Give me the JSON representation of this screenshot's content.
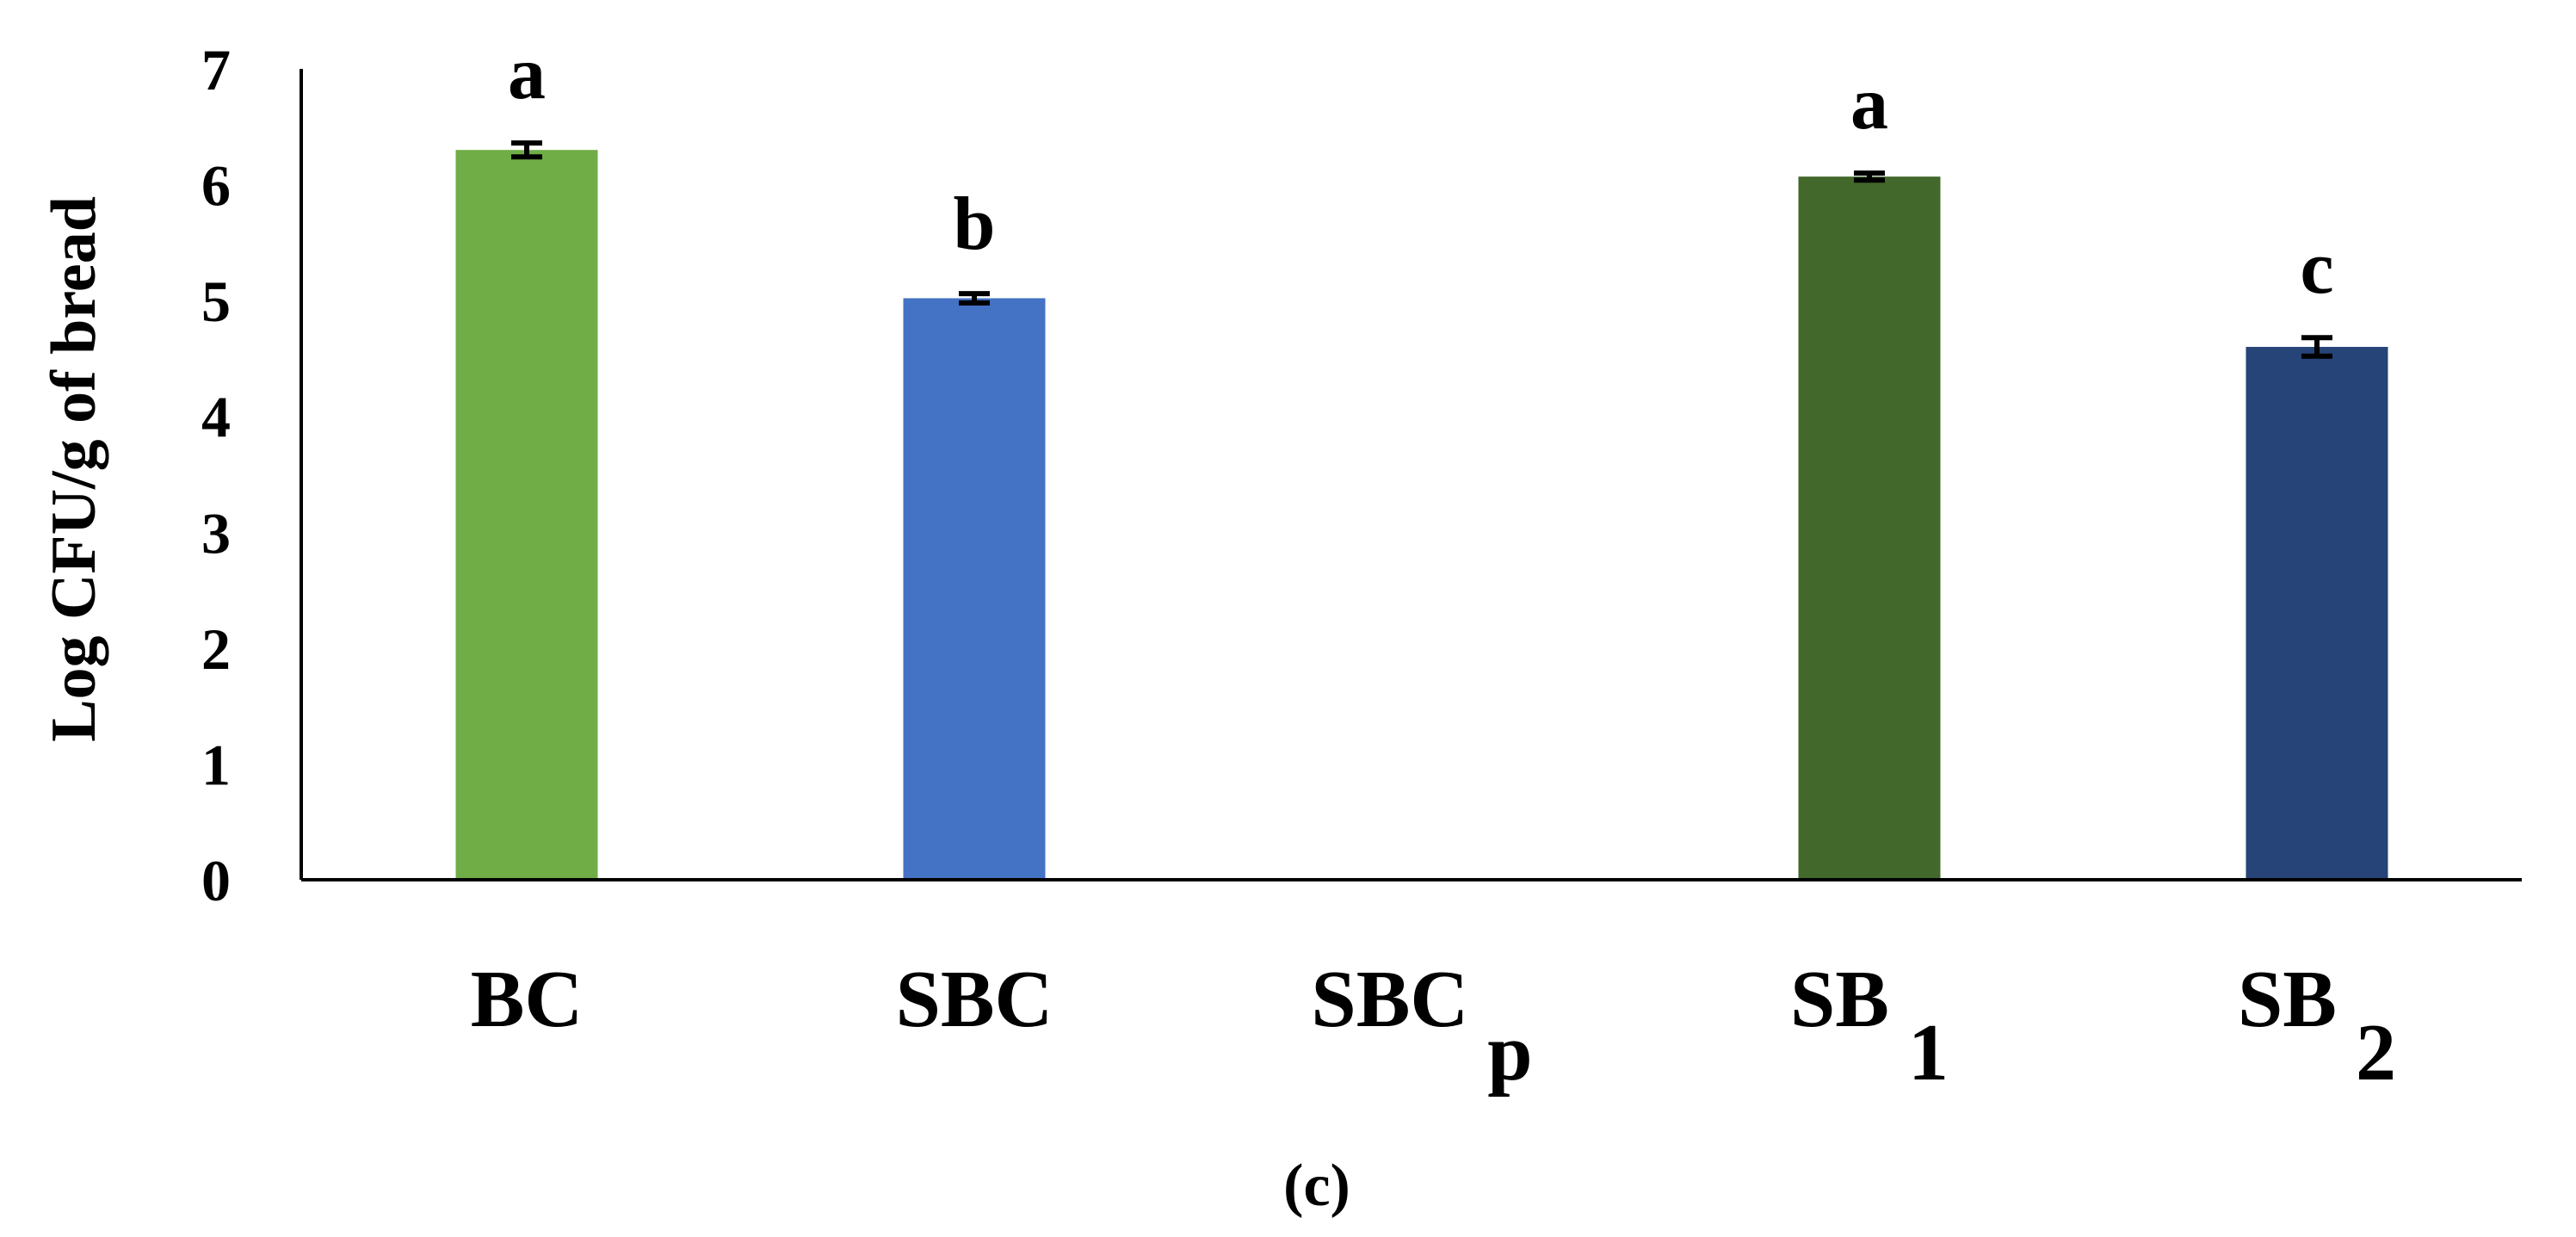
{
  "chart_data": {
    "type": "bar",
    "ylabel": "Log CFU/g of bread",
    "ylim": [
      0,
      7
    ],
    "yticks": [
      0,
      1,
      2,
      3,
      4,
      5,
      6,
      7
    ],
    "categories": [
      {
        "base": "BC",
        "sub": ""
      },
      {
        "base": "SBC",
        "sub": ""
      },
      {
        "base": "SBC",
        "sub": "p"
      },
      {
        "base": "SB",
        "sub": "1"
      },
      {
        "base": "SB",
        "sub": "2"
      }
    ],
    "values": [
      6.3,
      5.02,
      0,
      6.07,
      4.6
    ],
    "errors": [
      0.06,
      0.04,
      0,
      0.03,
      0.08
    ],
    "significance": [
      "a",
      "b",
      "",
      "a",
      "c"
    ],
    "colors": [
      "#70ad47",
      "#4472c4",
      "#4472c4",
      "#43682b",
      "#264478"
    ],
    "grid": false,
    "caption": "(c)"
  }
}
